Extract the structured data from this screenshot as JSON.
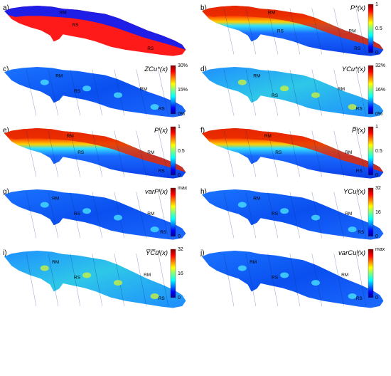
{
  "panels": [
    {
      "id": "a",
      "label": "a)",
      "title": "",
      "style": "regions",
      "cbar": null,
      "regions": [
        {
          "text": "RM",
          "color": "#1e1ee6",
          "fx": 0.3,
          "fy": 0.16
        },
        {
          "text": "RS",
          "color": "#ff1a1a",
          "fx": 0.37,
          "fy": 0.4
        },
        {
          "text": "RS",
          "color": "#ff1a1a",
          "fx": 0.78,
          "fy": 0.86
        }
      ]
    },
    {
      "id": "b",
      "label": "b)",
      "title": "P*(x)",
      "style": "prob",
      "cbar": [
        "1",
        "0.5",
        "0"
      ],
      "regions": [
        {
          "text": "RM",
          "fx": 0.36,
          "fy": 0.16
        },
        {
          "text": "RS",
          "fx": 0.41,
          "fy": 0.52
        },
        {
          "text": "RM",
          "fx": 0.8,
          "fy": 0.52
        },
        {
          "text": "RS",
          "fx": 0.83,
          "fy": 0.86
        }
      ]
    },
    {
      "id": "c",
      "label": "c)",
      "title": "ZCu*(x)",
      "style": "low",
      "cbar": [
        "30%",
        "15%",
        "0%"
      ],
      "regions": [
        {
          "text": "RM",
          "fx": 0.28,
          "fy": 0.2
        },
        {
          "text": "RS",
          "fx": 0.38,
          "fy": 0.5
        },
        {
          "text": "RM",
          "fx": 0.74,
          "fy": 0.46
        },
        {
          "text": "RS",
          "fx": 0.84,
          "fy": 0.84
        }
      ]
    },
    {
      "id": "d",
      "label": "d)",
      "title": "YCu*(x)",
      "style": "mid",
      "cbar": [
        "32%",
        "16%",
        "0%"
      ],
      "regions": [
        {
          "text": "RM",
          "fx": 0.28,
          "fy": 0.2
        },
        {
          "text": "RS",
          "fx": 0.38,
          "fy": 0.58
        },
        {
          "text": "RM",
          "fx": 0.74,
          "fy": 0.46
        },
        {
          "text": "RS",
          "fx": 0.84,
          "fy": 0.84
        }
      ]
    },
    {
      "id": "e",
      "label": "e)",
      "title": "Pᴵ(x)",
      "style": "prob",
      "cbar": [
        "1",
        "0.5",
        "0"
      ],
      "regions": [
        {
          "text": "RM",
          "fx": 0.34,
          "fy": 0.18
        },
        {
          "text": "RS",
          "fx": 0.4,
          "fy": 0.5
        },
        {
          "text": "RM",
          "fx": 0.78,
          "fy": 0.5
        },
        {
          "text": "RS",
          "fx": 0.84,
          "fy": 0.86
        }
      ]
    },
    {
      "id": "f",
      "label": "f)",
      "title": "P̅ᴵ(x)",
      "style": "prob",
      "cbar": [
        "1",
        "0.5",
        "0"
      ],
      "regions": [
        {
          "text": "RM",
          "fx": 0.34,
          "fy": 0.18
        },
        {
          "text": "RS",
          "fx": 0.4,
          "fy": 0.5
        },
        {
          "text": "RM",
          "fx": 0.78,
          "fy": 0.5
        },
        {
          "text": "RS",
          "fx": 0.84,
          "fy": 0.86
        }
      ]
    },
    {
      "id": "g",
      "label": "g)",
      "title": "varPᴵ(x)",
      "style": "low",
      "cbar": [
        "max",
        "0"
      ],
      "regions": [
        {
          "text": "RM",
          "fx": 0.26,
          "fy": 0.2
        },
        {
          "text": "RS",
          "fx": 0.38,
          "fy": 0.5
        },
        {
          "text": "RM",
          "fx": 0.78,
          "fy": 0.5
        },
        {
          "text": "RS",
          "fx": 0.85,
          "fy": 0.86
        }
      ]
    },
    {
      "id": "h",
      "label": "h)",
      "title": "YCuᴵ(x)",
      "style": "low",
      "cbar": [
        "32",
        "16",
        "0"
      ],
      "regions": [
        {
          "text": "RM",
          "fx": 0.28,
          "fy": 0.2
        },
        {
          "text": "RS",
          "fx": 0.38,
          "fy": 0.5
        },
        {
          "text": "RM",
          "fx": 0.78,
          "fy": 0.5
        },
        {
          "text": "RS",
          "fx": 0.85,
          "fy": 0.86
        }
      ]
    },
    {
      "id": "i",
      "label": "i)",
      "title": "Y̅C̅u̅ᴵ(x)",
      "style": "mid",
      "cbar": [
        "32",
        "16",
        "0"
      ],
      "regions": [
        {
          "text": "RM",
          "fx": 0.26,
          "fy": 0.22
        },
        {
          "text": "RS",
          "fx": 0.38,
          "fy": 0.48
        },
        {
          "text": "RM",
          "fx": 0.76,
          "fy": 0.44
        },
        {
          "text": "RS",
          "fx": 0.84,
          "fy": 0.84
        }
      ]
    },
    {
      "id": "j",
      "label": "j)",
      "title": "varCuᴵ(x)",
      "style": "low",
      "cbar": [
        "max",
        "0"
      ],
      "regions": [
        {
          "text": "RM",
          "fx": 0.26,
          "fy": 0.22
        },
        {
          "text": "RS",
          "fx": 0.38,
          "fy": 0.48
        },
        {
          "text": "RM",
          "fx": 0.76,
          "fy": 0.44
        },
        {
          "text": "RS",
          "fx": 0.84,
          "fy": 0.84
        }
      ]
    }
  ]
}
